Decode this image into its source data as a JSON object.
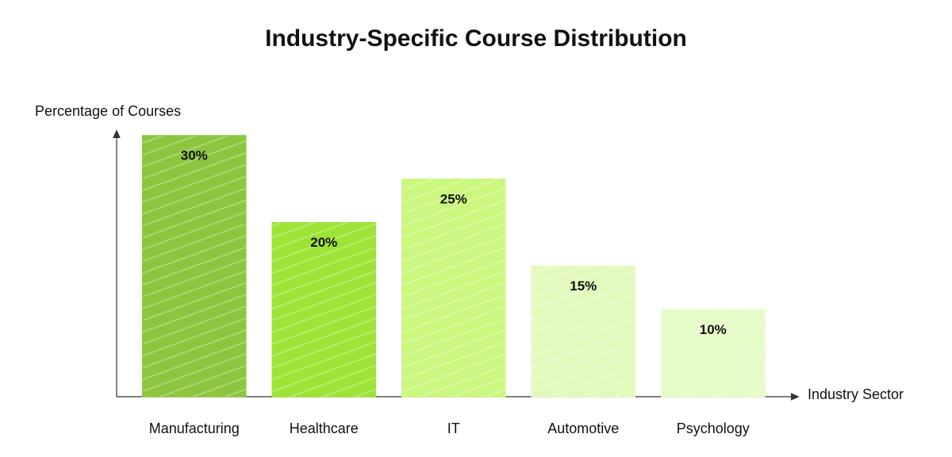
{
  "chart_data": {
    "type": "bar",
    "title": "Industry-Specific Course Distribution",
    "y_label": "Percentage of Courses",
    "x_label": "Industry Sector",
    "categories": [
      "Manufacturing",
      "Healthcare",
      "IT",
      "Automotive",
      "Psychology"
    ],
    "values": [
      30,
      20,
      25,
      15,
      10
    ],
    "value_labels": [
      "30%",
      "20%",
      "25%",
      "15%",
      "10%"
    ],
    "colors": [
      "#8cc63f",
      "#9ee436",
      "#ccf77f",
      "#e2fbbd",
      "#e6fcc6"
    ],
    "ylim": [
      0,
      30
    ]
  }
}
